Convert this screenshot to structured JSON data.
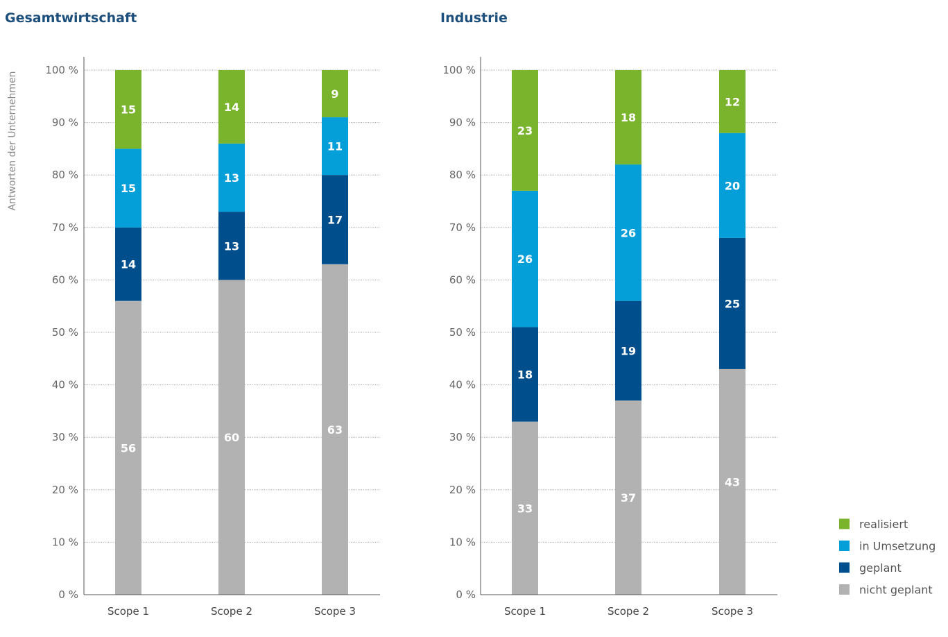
{
  "colors": {
    "realisiert": "#7ab42d",
    "in_umsetzung": "#049fd9",
    "geplant": "#004f8c",
    "nicht_geplant": "#b2b2b2",
    "title": "#1d4f7c"
  },
  "chart_data": [
    {
      "type": "bar",
      "stacked": true,
      "title": "Gesamtwirtschaft",
      "ylabel": "Antworten der Unternehmen",
      "xlabel": "",
      "ylim": [
        0,
        100
      ],
      "ytick_values": [
        0,
        10,
        20,
        30,
        40,
        50,
        60,
        70,
        80,
        90,
        100
      ],
      "yticks": [
        "0 %",
        "10 %",
        "20 %",
        "30 %",
        "40 %",
        "50 %",
        "60 %",
        "70 %",
        "80 %",
        "90 %",
        "100 %"
      ],
      "grid": true,
      "categories": [
        "Scope 1",
        "Scope 2",
        "Scope 3"
      ],
      "series": [
        {
          "name": "nicht geplant",
          "color_key": "nicht_geplant",
          "values": [
            56,
            60,
            63
          ]
        },
        {
          "name": "geplant",
          "color_key": "geplant",
          "values": [
            14,
            13,
            17
          ]
        },
        {
          "name": "in Umsetzung",
          "color_key": "in_umsetzung",
          "values": [
            15,
            13,
            11
          ]
        },
        {
          "name": "realisiert",
          "color_key": "realisiert",
          "values": [
            15,
            14,
            9
          ]
        }
      ]
    },
    {
      "type": "bar",
      "stacked": true,
      "title": "Industrie",
      "ylabel": "",
      "xlabel": "",
      "ylim": [
        0,
        100
      ],
      "ytick_values": [
        0,
        10,
        20,
        30,
        40,
        50,
        60,
        70,
        80,
        90,
        100
      ],
      "yticks": [
        "0 %",
        "10 %",
        "20 %",
        "30 %",
        "40 %",
        "50 %",
        "60 %",
        "70 %",
        "80 %",
        "90 %",
        "100 %"
      ],
      "grid": true,
      "categories": [
        "Scope 1",
        "Scope 2",
        "Scope 3"
      ],
      "series": [
        {
          "name": "nicht geplant",
          "color_key": "nicht_geplant",
          "values": [
            33,
            37,
            43
          ]
        },
        {
          "name": "geplant",
          "color_key": "geplant",
          "values": [
            18,
            19,
            25
          ]
        },
        {
          "name": "in Umsetzung",
          "color_key": "in_umsetzung",
          "values": [
            26,
            26,
            20
          ]
        },
        {
          "name": "realisiert",
          "color_key": "realisiert",
          "values": [
            23,
            18,
            12
          ]
        }
      ]
    }
  ],
  "legend": {
    "position": "bottom-right",
    "items": [
      {
        "label": "realisiert",
        "color_key": "realisiert"
      },
      {
        "label": "in Umsetzung",
        "color_key": "in_umsetzung"
      },
      {
        "label": "geplant",
        "color_key": "geplant"
      },
      {
        "label": "nicht geplant",
        "color_key": "nicht_geplant"
      }
    ]
  }
}
